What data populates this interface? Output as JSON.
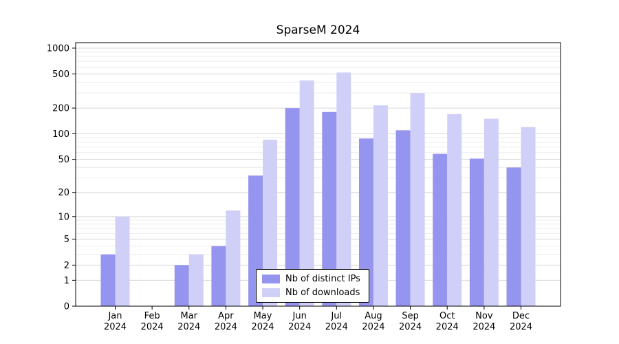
{
  "title": "SparseM 2024",
  "colors": {
    "background": "#ffffff",
    "axis": "#000000",
    "grid_major": "#d6d6d6",
    "grid_minor": "#ebebeb",
    "distinct_ips": "#9595ef",
    "downloads": "#cfcff8"
  },
  "chart_data": {
    "type": "bar",
    "title": "SparseM 2024",
    "categories": [
      "Jan 2024",
      "Feb 2024",
      "Mar 2024",
      "Apr 2024",
      "May 2024",
      "Jun 2024",
      "Jul 2024",
      "Aug 2024",
      "Sep 2024",
      "Oct 2024",
      "Nov 2024",
      "Dec 2024"
    ],
    "series": [
      {
        "name": "Nb of distinct IPs",
        "color": "#9595ef",
        "values": [
          3,
          0,
          2,
          4,
          32,
          200,
          180,
          88,
          110,
          58,
          51,
          40
        ]
      },
      {
        "name": "Nb of downloads",
        "color": "#cfcff8",
        "values": [
          10,
          0,
          3,
          12,
          85,
          420,
          520,
          215,
          300,
          170,
          150,
          120
        ]
      }
    ],
    "yticks": [
      0,
      1,
      2,
      5,
      10,
      20,
      50,
      100,
      200,
      500,
      1000
    ],
    "y_scale": "log10(value+1)",
    "ylim": [
      0,
      1150
    ],
    "grid": "horizontal-major-and-minor",
    "legend_position": "inside-bottom-center"
  }
}
